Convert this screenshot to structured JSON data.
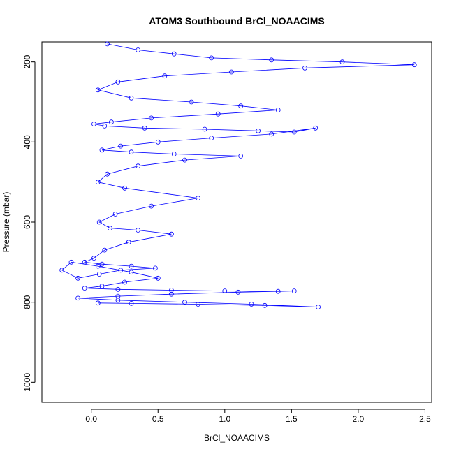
{
  "chart_data": {
    "type": "line",
    "title": "ATOM3 Southbound BrCl_NOAACIMS",
    "xlabel": "BrCl_NOAACIMS",
    "ylabel": "Pressure (mbar)",
    "xlim": [
      -0.37,
      2.55
    ],
    "ylim": [
      1050,
      150
    ],
    "y_reversed": true,
    "x_ticks": [
      0.0,
      0.5,
      1.0,
      1.5,
      2.0,
      2.5
    ],
    "x_tick_labels": [
      "0.0",
      "0.5",
      "1.0",
      "1.5",
      "2.0",
      "2.5"
    ],
    "y_ticks": [
      200,
      400,
      600,
      800,
      1000
    ],
    "y_tick_labels": [
      "200",
      "400",
      "600",
      "800",
      "1000"
    ],
    "grid": false,
    "legend": "none",
    "series_color": "#0000ff",
    "marker": "open-circle",
    "series": [
      {
        "x": [
          0.12,
          0.35,
          0.62,
          0.9,
          1.35,
          1.88,
          2.42,
          1.6,
          1.05,
          0.55,
          0.2,
          0.05,
          0.3,
          0.75,
          1.12,
          1.4,
          0.95,
          0.45,
          0.15,
          0.02,
          0.1,
          0.4,
          0.85,
          1.25,
          1.52,
          1.68,
          1.35,
          0.9,
          0.5,
          0.22,
          0.08,
          0.3,
          0.62,
          1.12,
          0.7,
          0.35,
          0.12,
          0.05,
          0.25,
          0.8,
          0.45,
          0.18,
          0.06,
          0.14,
          0.35,
          0.6,
          0.28,
          0.1,
          0.02,
          -0.05,
          0.08,
          0.3,
          0.48,
          0.22,
          0.06,
          -0.1,
          -0.22,
          -0.15,
          0.05,
          0.3,
          0.5,
          0.25,
          0.08,
          -0.05,
          0.2,
          0.6,
          1.0,
          1.4,
          1.52,
          1.1,
          0.6,
          0.2,
          -0.1,
          0.2,
          0.7,
          1.2,
          1.7,
          1.3,
          0.8,
          0.3,
          0.05
        ],
        "y": [
          155,
          170,
          180,
          190,
          195,
          200,
          207,
          215,
          225,
          235,
          250,
          270,
          290,
          300,
          310,
          320,
          330,
          340,
          350,
          355,
          360,
          365,
          368,
          372,
          375,
          365,
          380,
          390,
          400,
          410,
          420,
          425,
          430,
          435,
          445,
          460,
          480,
          500,
          515,
          540,
          560,
          580,
          600,
          615,
          620,
          630,
          650,
          670,
          690,
          700,
          705,
          710,
          715,
          720,
          730,
          740,
          720,
          700,
          710,
          725,
          740,
          750,
          760,
          765,
          768,
          770,
          772,
          773,
          772,
          775,
          780,
          785,
          790,
          795,
          800,
          805,
          812,
          808,
          805,
          803,
          802
        ]
      }
    ]
  }
}
